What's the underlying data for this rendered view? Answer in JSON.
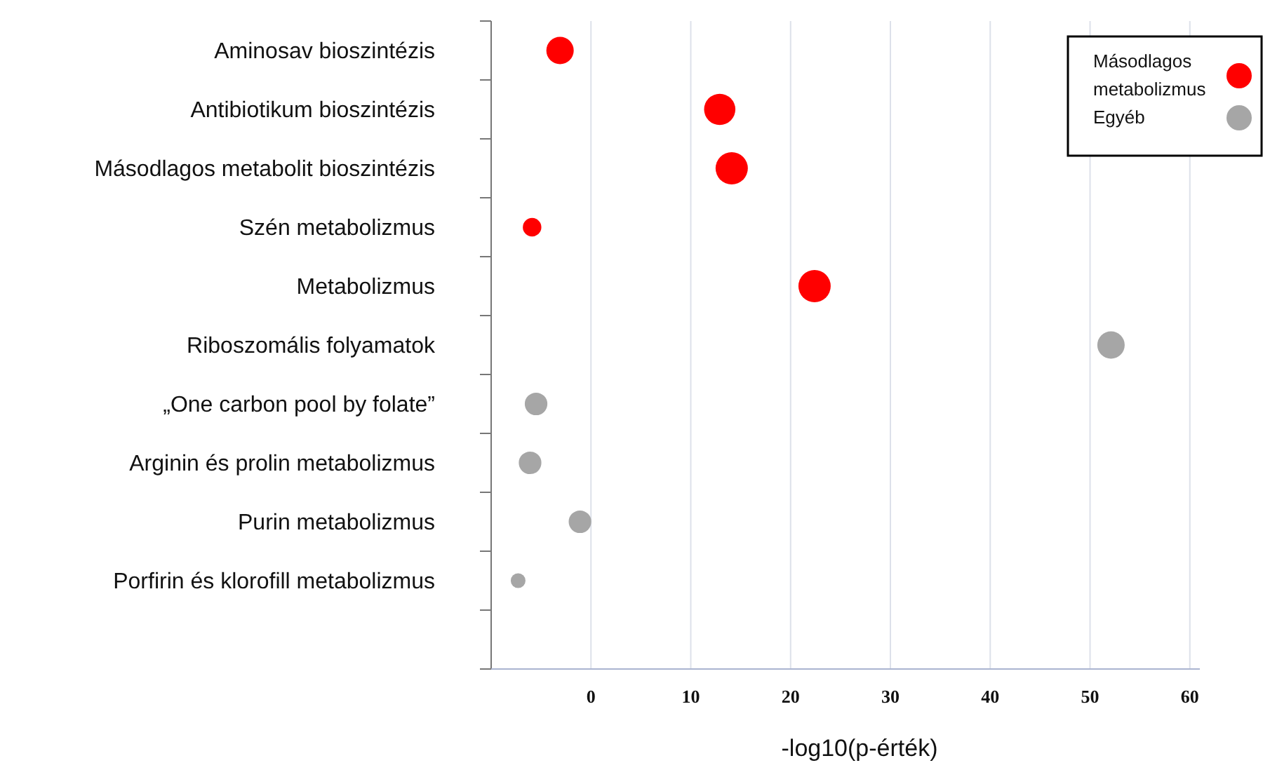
{
  "chart_data": {
    "type": "bubble",
    "orientation": "horizontal",
    "xlabel": "-log10(p-érték)",
    "categories": [
      "Aminosav bioszintézis",
      "Antibiotikum bioszintézis",
      "Másodlagos metabolit bioszintézis",
      "Szén metabolizmus",
      "Metabolizmus",
      "Riboszomális folyamatok",
      "„One carbon pool by folate”",
      "Arginin és prolin metabolizmus",
      "Purin metabolizmus",
      "Porfirin és klorofill metabolizmus",
      null
    ],
    "series": [
      {
        "name": "Másodlagos metabolizmus",
        "color": "#ff0000",
        "values": [
          -3.1,
          12.9,
          14.1,
          -5.9,
          22.4,
          null,
          null,
          null,
          null,
          null,
          null
        ],
        "sizes": [
          0.72,
          0.94,
          1,
          0.33,
          1,
          null,
          null,
          null,
          null,
          null,
          null
        ]
      },
      {
        "name": "Egyéb",
        "color": "#a6a6a6",
        "values": [
          null,
          null,
          null,
          null,
          null,
          52.1,
          -5.5,
          -6.1,
          -1.1,
          -7.3,
          null
        ],
        "sizes": [
          null,
          null,
          null,
          null,
          null,
          0.72,
          0.49,
          0.49,
          0.49,
          0.21,
          null
        ]
      }
    ],
    "xlim": [
      -10,
      61
    ],
    "xticks": [
      0,
      10,
      20,
      30,
      40,
      50,
      60
    ],
    "grid": "x",
    "legend": "top right"
  }
}
